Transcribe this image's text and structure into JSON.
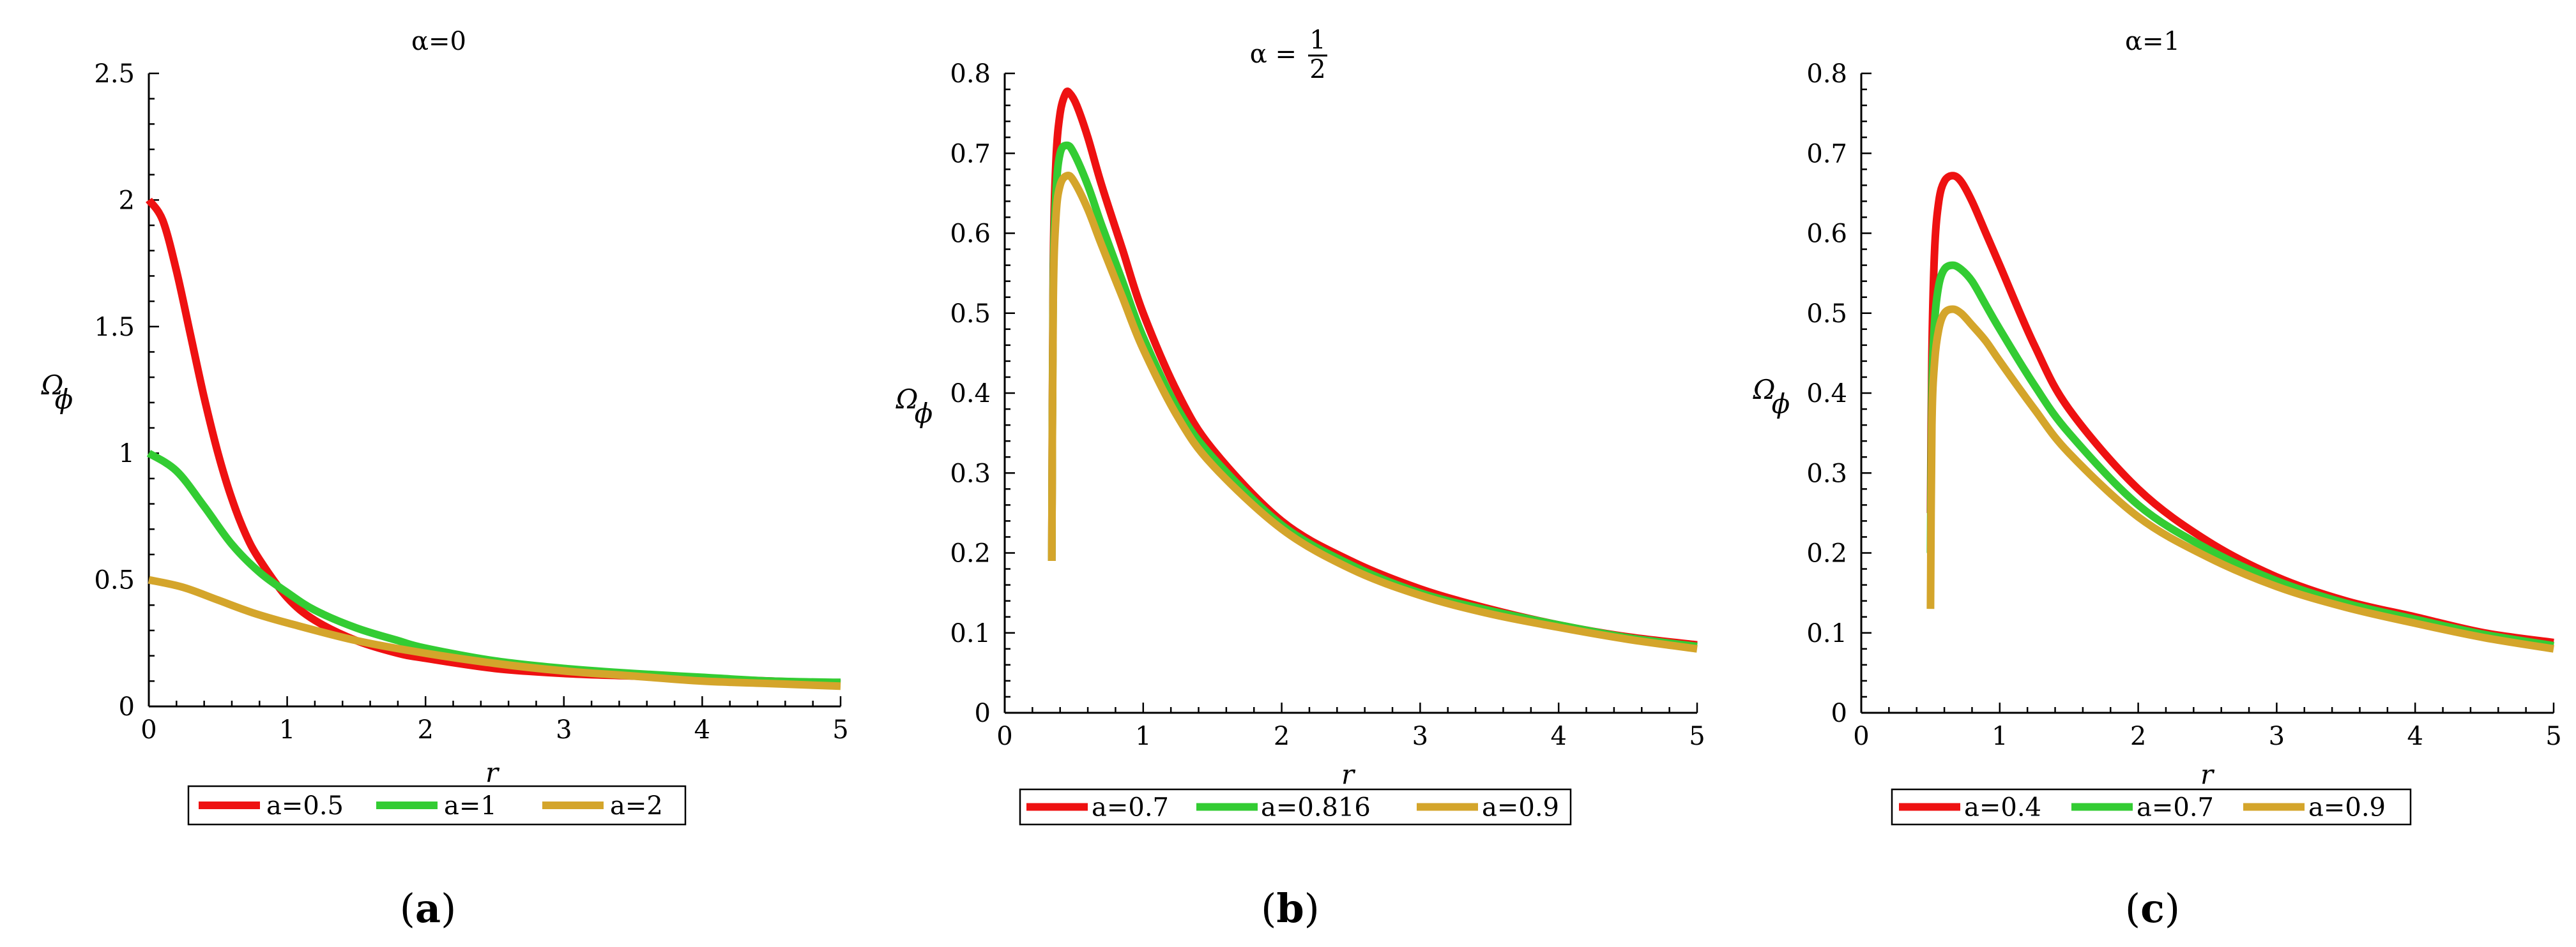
{
  "panels": [
    {
      "caption": "a",
      "chart_data": {
        "type": "line",
        "title": "α=0",
        "xlabel": "r",
        "ylabel": "Ω",
        "ylabel_sub": "ϕ",
        "xlim": [
          0,
          5
        ],
        "ylim": [
          0,
          2.5
        ],
        "xticks": [
          "0",
          "1",
          "2",
          "3",
          "4",
          "5"
        ],
        "yticks": [
          "0",
          "0.5",
          "1",
          "1.5",
          "2",
          "2.5"
        ],
        "ytick_values": [
          0,
          0.5,
          1,
          1.5,
          2,
          2.5
        ],
        "grid": false,
        "legend_position": "below",
        "series": [
          {
            "name": "a=0.5",
            "color": "#ee1111",
            "x": [
              0,
              0.1,
              0.2,
              0.3,
              0.4,
              0.5,
              0.6,
              0.7,
              0.8,
              1.0,
              1.2,
              1.5,
              1.8,
              2.0,
              2.5,
              3.0,
              3.5,
              4.0,
              4.5,
              5.0
            ],
            "y": [
              2.0,
              1.92,
              1.72,
              1.47,
              1.22,
              1.0,
              0.82,
              0.68,
              0.58,
              0.43,
              0.34,
              0.26,
              0.21,
              0.19,
              0.15,
              0.13,
              0.12,
              0.11,
              0.1,
              0.09
            ]
          },
          {
            "name": "a=1",
            "color": "#33cc33",
            "x": [
              0,
              0.2,
              0.4,
              0.6,
              0.8,
              1.0,
              1.2,
              1.5,
              1.8,
              2.0,
              2.5,
              3.0,
              3.5,
              4.0,
              4.5,
              5.0
            ],
            "y": [
              1.0,
              0.93,
              0.79,
              0.64,
              0.53,
              0.45,
              0.38,
              0.31,
              0.26,
              0.23,
              0.18,
              0.15,
              0.13,
              0.115,
              0.1,
              0.095
            ]
          },
          {
            "name": "a=2",
            "color": "#d4a52b",
            "x": [
              0,
              0.25,
              0.5,
              0.75,
              1.0,
              1.5,
              2.0,
              2.5,
              3.0,
              3.5,
              4.0,
              4.5,
              5.0
            ],
            "y": [
              0.5,
              0.47,
              0.42,
              0.37,
              0.33,
              0.26,
              0.21,
              0.17,
              0.14,
              0.12,
              0.1,
              0.09,
              0.08
            ]
          }
        ]
      }
    },
    {
      "caption": "b",
      "chart_data": {
        "type": "line",
        "title_prefix": "α =",
        "title_num": "1",
        "title_den": "2",
        "xlabel": "r",
        "ylabel": "Ω",
        "ylabel_sub": "ϕ",
        "xlim": [
          0,
          5
        ],
        "ylim": [
          0,
          0.8
        ],
        "xticks": [
          "0",
          "1",
          "2",
          "3",
          "4",
          "5"
        ],
        "yticks": [
          "0",
          "0.1",
          "0.2",
          "0.3",
          "0.4",
          "0.5",
          "0.6",
          "0.7",
          "0.8"
        ],
        "ytick_values": [
          0,
          0.1,
          0.2,
          0.3,
          0.4,
          0.5,
          0.6,
          0.7,
          0.8
        ],
        "grid": false,
        "legend_position": "below",
        "series": [
          {
            "name": "a=0.7",
            "color": "#ee1111",
            "x": [
              0.34,
              0.35,
              0.37,
              0.4,
              0.44,
              0.47,
              0.52,
              0.6,
              0.7,
              0.85,
              1.0,
              1.25,
              1.5,
              2.0,
              2.5,
              3.0,
              3.5,
              4.0,
              4.5,
              5.0
            ],
            "y": [
              0.19,
              0.55,
              0.69,
              0.75,
              0.775,
              0.775,
              0.76,
              0.72,
              0.66,
              0.58,
              0.5,
              0.4,
              0.33,
              0.24,
              0.19,
              0.155,
              0.13,
              0.11,
              0.095,
              0.085
            ]
          },
          {
            "name": "a=0.816",
            "color": "#33cc33",
            "x": [
              0.34,
              0.35,
              0.37,
              0.4,
              0.45,
              0.5,
              0.6,
              0.7,
              0.85,
              1.0,
              1.25,
              1.5,
              2.0,
              2.5,
              3.0,
              3.5,
              4.0,
              4.5,
              5.0
            ],
            "y": [
              0.19,
              0.53,
              0.65,
              0.7,
              0.71,
              0.7,
              0.66,
              0.61,
              0.54,
              0.47,
              0.38,
              0.32,
              0.235,
              0.185,
              0.15,
              0.128,
              0.11,
              0.094,
              0.083
            ]
          },
          {
            "name": "a=0.9",
            "color": "#d4a52b",
            "x": [
              0.34,
              0.35,
              0.37,
              0.4,
              0.45,
              0.5,
              0.6,
              0.7,
              0.85,
              1.0,
              1.25,
              1.5,
              2.0,
              2.5,
              3.0,
              3.5,
              4.0,
              4.5,
              5.0
            ],
            "y": [
              0.19,
              0.51,
              0.62,
              0.66,
              0.672,
              0.665,
              0.63,
              0.585,
              0.52,
              0.455,
              0.37,
              0.31,
              0.23,
              0.18,
              0.147,
              0.124,
              0.107,
              0.092,
              0.08
            ]
          }
        ]
      }
    },
    {
      "caption": "c",
      "chart_data": {
        "type": "line",
        "title": "α=1",
        "xlabel": "r",
        "ylabel": "Ω",
        "ylabel_sub": "ϕ",
        "xlim": [
          0,
          5
        ],
        "ylim": [
          0,
          0.8
        ],
        "xticks": [
          "0",
          "1",
          "2",
          "3",
          "4",
          "5"
        ],
        "yticks": [
          "0",
          "0.1",
          "0.2",
          "0.3",
          "0.4",
          "0.5",
          "0.6",
          "0.7",
          "0.8"
        ],
        "ytick_values": [
          0,
          0.1,
          0.2,
          0.3,
          0.4,
          0.5,
          0.6,
          0.7,
          0.8
        ],
        "grid": false,
        "legend_position": "below",
        "series": [
          {
            "name": "a=0.4",
            "color": "#ee1111",
            "x": [
              0.5,
              0.51,
              0.53,
              0.56,
              0.6,
              0.66,
              0.72,
              0.8,
              0.9,
              1.0,
              1.25,
              1.5,
              2.0,
              2.5,
              3.0,
              3.5,
              4.0,
              4.5,
              5.0
            ],
            "y": [
              0.25,
              0.45,
              0.58,
              0.64,
              0.665,
              0.672,
              0.665,
              0.64,
              0.6,
              0.56,
              0.46,
              0.38,
              0.28,
              0.215,
              0.17,
              0.14,
              0.12,
              0.1,
              0.088
            ]
          },
          {
            "name": "a=0.7",
            "color": "#33cc33",
            "x": [
              0.5,
              0.51,
              0.53,
              0.56,
              0.6,
              0.66,
              0.72,
              0.8,
              0.9,
              1.0,
              1.25,
              1.5,
              2.0,
              2.5,
              3.0,
              3.5,
              4.0,
              4.5,
              5.0
            ],
            "y": [
              0.2,
              0.4,
              0.49,
              0.535,
              0.555,
              0.56,
              0.555,
              0.54,
              0.51,
              0.48,
              0.41,
              0.35,
              0.26,
              0.205,
              0.165,
              0.137,
              0.117,
              0.098,
              0.084
            ]
          },
          {
            "name": "a=0.9",
            "color": "#d4a52b",
            "x": [
              0.5,
              0.51,
              0.53,
              0.56,
              0.6,
              0.66,
              0.72,
              0.8,
              0.9,
              1.0,
              1.25,
              1.5,
              2.0,
              2.5,
              3.0,
              3.5,
              4.0,
              4.5,
              5.0
            ],
            "y": [
              0.13,
              0.36,
              0.44,
              0.48,
              0.5,
              0.505,
              0.5,
              0.485,
              0.465,
              0.44,
              0.38,
              0.325,
              0.245,
              0.195,
              0.158,
              0.132,
              0.112,
              0.094,
              0.08
            ]
          }
        ]
      }
    }
  ]
}
